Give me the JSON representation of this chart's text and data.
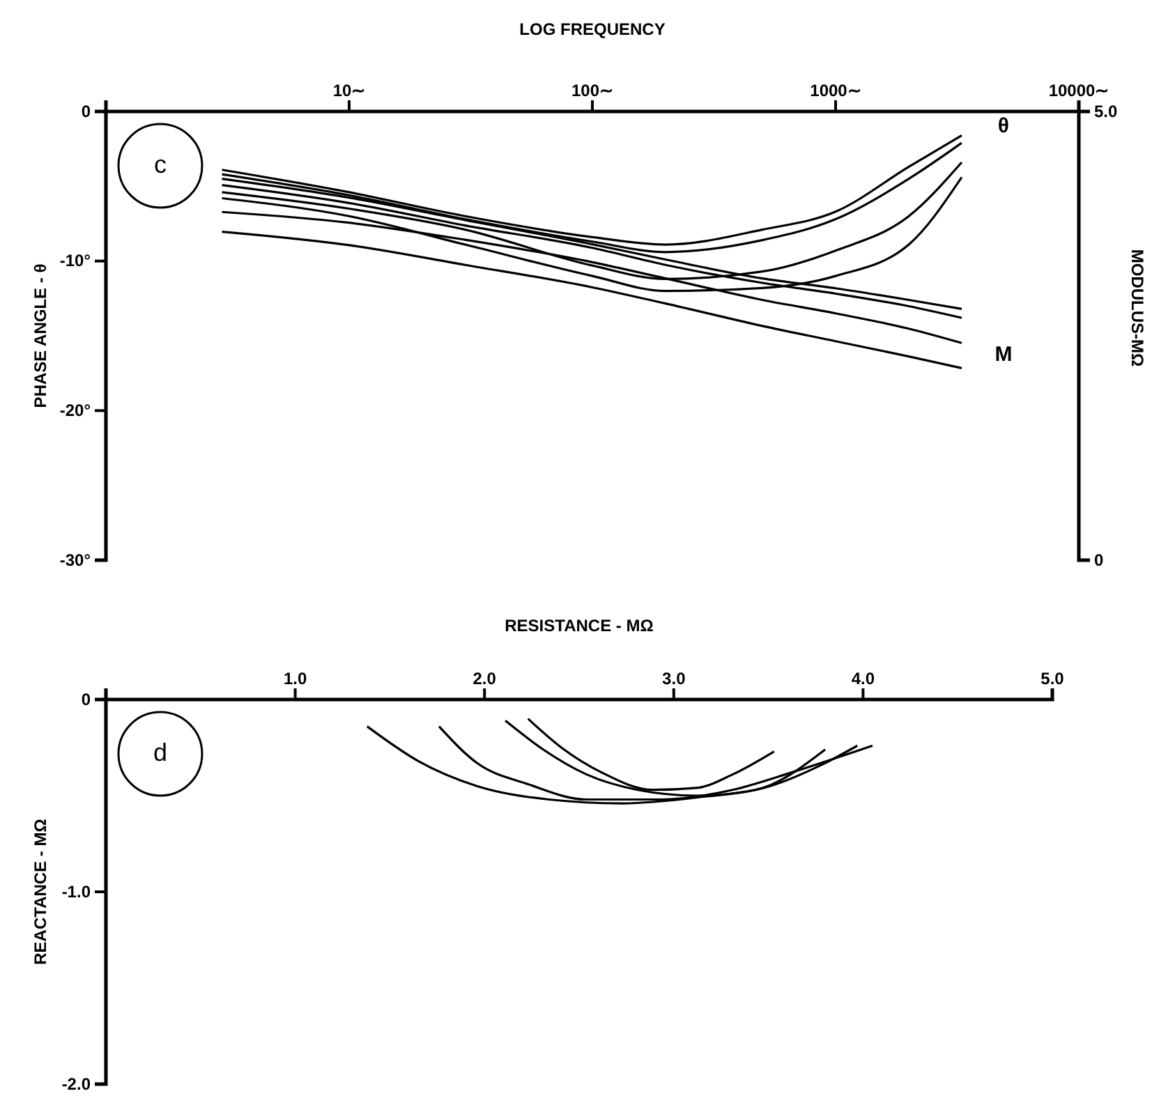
{
  "chart_data": [
    {
      "type": "line",
      "xlabel": "LOG FREQUENCY",
      "ylabel": "PHASE ANGLE - θ",
      "y2label": "MODULUS-MΩ",
      "log": "x",
      "xlim": [
        1,
        10000
      ],
      "xticks": [
        {
          "value": 10,
          "label": "10∼"
        },
        {
          "value": 100,
          "label": "100∼"
        },
        {
          "value": 1000,
          "label": "1000∼"
        },
        {
          "value": 10000,
          "label": "10000∼"
        }
      ],
      "ylim": [
        -30,
        0
      ],
      "yticks": [
        {
          "value": 0,
          "label": "0"
        },
        {
          "value": -10,
          "label": "-10°"
        },
        {
          "value": -20,
          "label": "-20°"
        },
        {
          "value": -30,
          "label": "-30°"
        }
      ],
      "y2lim": [
        0,
        5
      ],
      "y2ticks": [
        {
          "value": 0,
          "label": "0"
        },
        {
          "value": 5,
          "label": "5.0"
        }
      ],
      "x": [
        3,
        10,
        30,
        100,
        200,
        500,
        1000,
        2000,
        3300
      ],
      "annotations": [
        "c",
        "θ",
        "M"
      ],
      "series": [
        {
          "color": "#000000",
          "values": [
            -3.9,
            -5.4,
            -7.0,
            -8.4,
            -8.9,
            -7.9,
            -6.7,
            -3.7,
            -1.6
          ]
        },
        {
          "color": "#000000",
          "values": [
            -4.2,
            -5.6,
            -7.2,
            -8.7,
            -9.4,
            -8.6,
            -7.2,
            -4.5,
            -2.1
          ]
        },
        {
          "color": "#000000",
          "values": [
            -5.4,
            -6.5,
            -7.9,
            -10.3,
            -11.2,
            -10.7,
            -9.3,
            -7.0,
            -3.4
          ]
        },
        {
          "color": "#000000",
          "values": [
            -5.8,
            -7.0,
            -8.9,
            -11.0,
            -12.0,
            -11.8,
            -11.0,
            -8.9,
            -4.4
          ]
        },
        {
          "color": "#000000",
          "axis": "y2",
          "values": [
            4.25,
            4.04,
            3.79,
            3.52,
            3.35,
            3.14,
            3.03,
            2.9,
            2.8
          ]
        },
        {
          "color": "#000000",
          "axis": "y2",
          "values": [
            4.18,
            3.98,
            3.73,
            3.48,
            3.29,
            3.09,
            2.97,
            2.83,
            2.7
          ]
        },
        {
          "color": "#000000",
          "axis": "y2",
          "values": [
            3.88,
            3.76,
            3.57,
            3.32,
            3.14,
            2.9,
            2.75,
            2.58,
            2.42
          ]
        },
        {
          "color": "#000000",
          "axis": "y2",
          "values": [
            3.66,
            3.51,
            3.29,
            3.04,
            2.86,
            2.61,
            2.44,
            2.27,
            2.14
          ]
        }
      ]
    },
    {
      "type": "line",
      "xlabel": "RESISTANCE - MΩ",
      "ylabel": "REACTANCE - MΩ",
      "xlim": [
        0,
        5
      ],
      "xticks": [
        {
          "value": 1,
          "label": "1.0"
        },
        {
          "value": 2,
          "label": "2.0"
        },
        {
          "value": 3,
          "label": "3.0"
        },
        {
          "value": 4,
          "label": "4.0"
        },
        {
          "value": 5,
          "label": "5.0"
        }
      ],
      "ylim": [
        -2,
        0
      ],
      "yticks": [
        {
          "value": 0,
          "label": "0"
        },
        {
          "value": -1,
          "label": "-1.0"
        },
        {
          "value": -2,
          "label": "-2.0"
        }
      ],
      "annotations": [
        "d"
      ],
      "series": [
        {
          "color": "#000000",
          "x": [
            1.38,
            1.65,
            1.96,
            2.34,
            2.73,
            3.12,
            3.51,
            3.78,
            3.97
          ],
          "values": [
            -0.14,
            -0.32,
            -0.45,
            -0.52,
            -0.54,
            -0.51,
            -0.45,
            -0.34,
            -0.24
          ]
        },
        {
          "color": "#000000",
          "x": [
            1.76,
            1.96,
            2.23,
            2.54,
            2.93,
            3.31,
            3.62,
            4.05
          ],
          "values": [
            -0.14,
            -0.33,
            -0.44,
            -0.52,
            -0.52,
            -0.47,
            -0.38,
            -0.24
          ]
        },
        {
          "color": "#000000",
          "x": [
            2.11,
            2.31,
            2.54,
            2.81,
            3.12,
            3.43,
            3.8
          ],
          "values": [
            -0.11,
            -0.26,
            -0.39,
            -0.47,
            -0.5,
            -0.47,
            -0.26
          ]
        },
        {
          "color": "#000000",
          "x": [
            2.23,
            2.42,
            2.62,
            2.89,
            3.12,
            3.31,
            3.53
          ],
          "values": [
            -0.1,
            -0.26,
            -0.38,
            -0.47,
            -0.46,
            -0.39,
            -0.27
          ]
        }
      ]
    }
  ]
}
